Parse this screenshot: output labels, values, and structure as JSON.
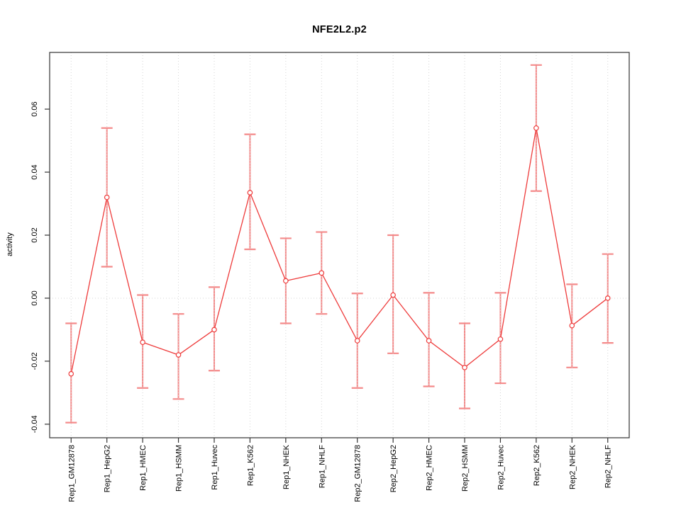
{
  "chart_data": {
    "type": "line",
    "title": "NFE2L2.p2",
    "ylabel": "activity",
    "xlabel": "",
    "categories": [
      "Rep1_GM12878",
      "Rep1_HepG2",
      "Rep1_HMEC",
      "Rep1_HSMM",
      "Rep1_Huvec",
      "Rep1_K562",
      "Rep1_NHEK",
      "Rep1_NHLF",
      "Rep2_GM12878",
      "Rep2_HepG2",
      "Rep2_HMEC",
      "Rep2_HSMM",
      "Rep2_Huvec",
      "Rep2_K562",
      "Rep2_NHEK",
      "Rep2_NHLF"
    ],
    "values": [
      -0.024,
      0.032,
      -0.014,
      -0.018,
      -0.01,
      0.0335,
      0.0055,
      0.008,
      -0.0135,
      0.001,
      -0.0135,
      -0.022,
      -0.013,
      0.054,
      -0.0087,
      0.0
    ],
    "error_low": [
      -0.0395,
      0.01,
      -0.0285,
      -0.032,
      -0.023,
      0.0155,
      -0.008,
      -0.005,
      -0.0285,
      -0.0175,
      -0.028,
      -0.035,
      -0.027,
      0.034,
      -0.022,
      -0.0142
    ],
    "error_high": [
      -0.008,
      0.054,
      0.001,
      -0.005,
      0.0035,
      0.052,
      0.019,
      0.021,
      0.0015,
      0.02,
      0.0017,
      -0.008,
      0.0017,
      0.074,
      0.0044,
      0.014
    ],
    "yticks": [
      -0.04,
      -0.02,
      0.0,
      0.02,
      0.04,
      0.06
    ],
    "ylim": [
      -0.0443,
      0.078
    ],
    "xlim": [
      0.4,
      16.6
    ],
    "grid": "vertical dotted line at each category; horizontal dotted line at y=0",
    "legend_position": "none",
    "marker": "open-circle",
    "colors": {
      "series": "#ee3b3b",
      "error_bar": "#f48a8a",
      "grid": "#d4d4d4",
      "box": "#333333",
      "text": "#000000",
      "background": "#ffffff"
    }
  }
}
